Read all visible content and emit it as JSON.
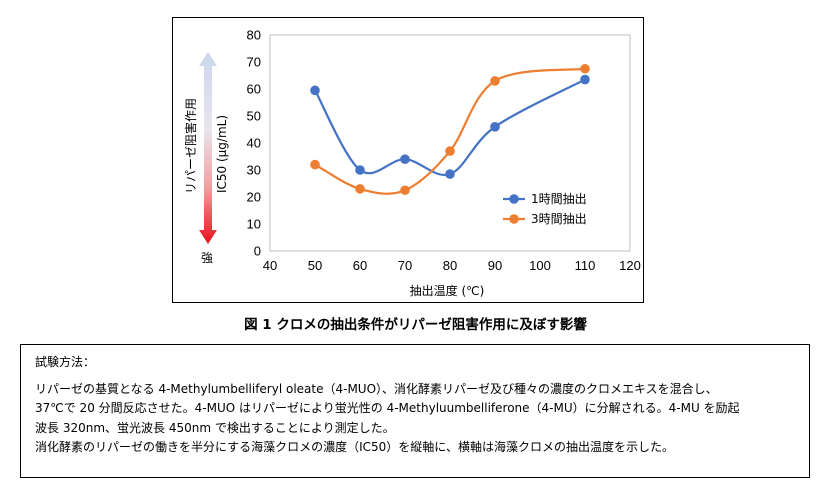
{
  "chart_data": {
    "type": "line",
    "title": "",
    "xlabel": "抽出温度 (℃)",
    "ylabel": "IC50 (μg/mL)",
    "xlim": [
      40,
      120
    ],
    "ylim": [
      0,
      80
    ],
    "x_ticks": [
      40,
      50,
      60,
      70,
      80,
      90,
      100,
      110,
      120
    ],
    "y_ticks": [
      0,
      10,
      20,
      30,
      40,
      50,
      60,
      70,
      80
    ],
    "grid": false,
    "legend_position": "right",
    "series": [
      {
        "name": "1時間抽出",
        "color": "#4472C4",
        "x": [
          50,
          60,
          70,
          80,
          90,
          110
        ],
        "y": [
          59.5,
          30,
          34,
          28.5,
          46,
          63.5
        ]
      },
      {
        "name": "3時間抽出",
        "color": "#ED7D31",
        "x": [
          50,
          60,
          70,
          80,
          90,
          110
        ],
        "y": [
          32,
          23,
          22.5,
          37,
          63,
          67.5
        ]
      }
    ],
    "arrow_label_top": "リパーゼ阻害作用",
    "arrow_label_bottom": "強"
  },
  "caption": "図 1 クロメの抽出条件がリパーゼ阻害作用に及ぼす影響",
  "method": {
    "heading": "試験方法：",
    "lines": [
      "リパーゼの基質となる 4-Methylumbelliferyl oleate（4-MUO）、消化酵素リパーゼ及び種々の濃度のクロメエキスを混合し、",
      "37℃で 20 分間反応させた。4-MUO はリパーゼにより蛍光性の 4-Methyluumbelliferone（4-MU）に分解される。4-MU を励起",
      "波長 320nm、蛍光波長 450nm で検出することにより測定した。",
      "消化酵素のリパーゼの働きを半分にする海藻クロメの濃度（IC50）を縦軸に、横軸は海藻クロメの抽出温度を示した。"
    ]
  }
}
